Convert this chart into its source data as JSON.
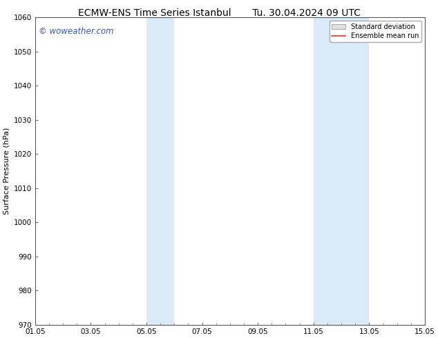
{
  "title_left": "ECMW-ENS Time Series Istanbul",
  "title_right": "Tu. 30.04.2024 09 UTC",
  "ylabel": "Surface Pressure (hPa)",
  "ylim": [
    970,
    1060
  ],
  "yticks": [
    970,
    980,
    990,
    1000,
    1010,
    1020,
    1030,
    1040,
    1050,
    1060
  ],
  "xtick_labels": [
    "01.05",
    "03.05",
    "05.05",
    "07.05",
    "09.05",
    "11.05",
    "13.05",
    "15.05"
  ],
  "xtick_positions": [
    0,
    2,
    4,
    6,
    8,
    10,
    12,
    14
  ],
  "xlim": [
    0,
    14
  ],
  "shaded_bands": [
    {
      "x_start": 4,
      "x_end": 5
    },
    {
      "x_start": 10,
      "x_end": 12
    }
  ],
  "shaded_color": "#daeaf8",
  "watermark_text": "© woweather.com",
  "watermark_color": "#3355bb",
  "background_color": "#ffffff",
  "plot_bg_color": "#ffffff",
  "grid_color": "#dddddd",
  "legend_std_facecolor": "#e0e0e0",
  "legend_std_edgecolor": "#aaaaaa",
  "legend_mean_color": "#ff2222",
  "title_fontsize": 10,
  "axis_label_fontsize": 8,
  "tick_fontsize": 7.5,
  "watermark_fontsize": 8.5
}
